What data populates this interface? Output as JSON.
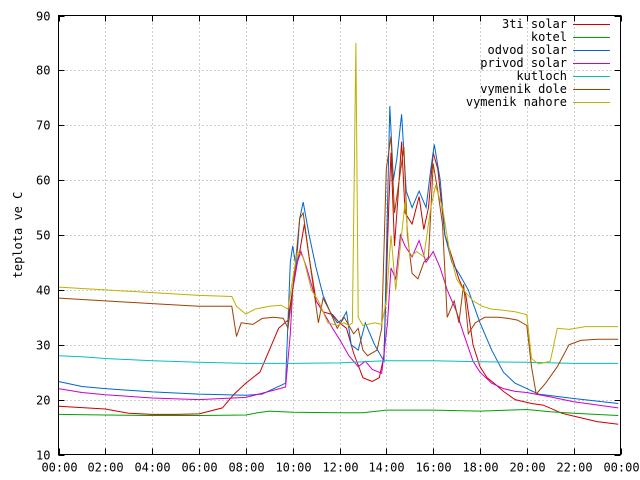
{
  "chart_data": {
    "type": "line",
    "title": "",
    "xlabel": "",
    "ylabel": "teplota ve C",
    "grid": true,
    "legend_position": "top-right",
    "xlim": [
      0,
      24
    ],
    "ylim": [
      10,
      90
    ],
    "x_ticks": [
      {
        "value": 0,
        "label": "00:00"
      },
      {
        "value": 2,
        "label": "02:00"
      },
      {
        "value": 4,
        "label": "04:00"
      },
      {
        "value": 6,
        "label": "06:00"
      },
      {
        "value": 8,
        "label": "08:00"
      },
      {
        "value": 10,
        "label": "10:00"
      },
      {
        "value": 12,
        "label": "12:00"
      },
      {
        "value": 14,
        "label": "14:00"
      },
      {
        "value": 16,
        "label": "16:00"
      },
      {
        "value": 18,
        "label": "18:00"
      },
      {
        "value": 20,
        "label": "20:00"
      },
      {
        "value": 22,
        "label": "22:00"
      },
      {
        "value": 24,
        "label": "00:00"
      }
    ],
    "y_ticks": [
      10,
      20,
      30,
      40,
      50,
      60,
      70,
      80,
      90
    ],
    "series": [
      {
        "name": "3ti solar",
        "color": "#cc0000",
        "points": [
          [
            0,
            18.8
          ],
          [
            2,
            18.3
          ],
          [
            3,
            17.5
          ],
          [
            4,
            17.3
          ],
          [
            5,
            17.3
          ],
          [
            6,
            17.4
          ],
          [
            7,
            18.5
          ],
          [
            7.5,
            21
          ],
          [
            8,
            23
          ],
          [
            8.6,
            25
          ],
          [
            9,
            29
          ],
          [
            9.4,
            33
          ],
          [
            9.8,
            34.5
          ],
          [
            10.1,
            43
          ],
          [
            10.3,
            47
          ],
          [
            10.5,
            52
          ],
          [
            10.7,
            46
          ],
          [
            11,
            38
          ],
          [
            11.3,
            36
          ],
          [
            11.7,
            35.5
          ],
          [
            12,
            34
          ],
          [
            12.3,
            33
          ],
          [
            12.6,
            28.5
          ],
          [
            13,
            24
          ],
          [
            13.4,
            23.3
          ],
          [
            13.7,
            24
          ],
          [
            13.9,
            28
          ],
          [
            14.1,
            55
          ],
          [
            14.2,
            65
          ],
          [
            14.35,
            48
          ],
          [
            14.5,
            57
          ],
          [
            14.65,
            67
          ],
          [
            14.8,
            54
          ],
          [
            15.1,
            52
          ],
          [
            15.4,
            57
          ],
          [
            15.6,
            51
          ],
          [
            15.8,
            55
          ],
          [
            16,
            65
          ],
          [
            16.2,
            62
          ],
          [
            16.5,
            50
          ],
          [
            16.8,
            46
          ],
          [
            17.1,
            42
          ],
          [
            17.4,
            39
          ],
          [
            17.7,
            30
          ],
          [
            18,
            26
          ],
          [
            18.3,
            24
          ],
          [
            18.6,
            23
          ],
          [
            19,
            21.5
          ],
          [
            19.5,
            20
          ],
          [
            20,
            19.5
          ],
          [
            20.2,
            19.3
          ],
          [
            20.7,
            19
          ],
          [
            21.5,
            17.5
          ],
          [
            22,
            17
          ],
          [
            23,
            16
          ],
          [
            23.9,
            15.5
          ]
        ]
      },
      {
        "name": "kotel",
        "color": "#00a000",
        "points": [
          [
            0,
            17.3
          ],
          [
            2,
            17.2
          ],
          [
            4,
            17.1
          ],
          [
            6,
            17.1
          ],
          [
            8,
            17.2
          ],
          [
            8.5,
            17.6
          ],
          [
            9,
            17.9
          ],
          [
            10,
            17.7
          ],
          [
            12,
            17.6
          ],
          [
            13,
            17.6
          ],
          [
            14,
            18.1
          ],
          [
            16,
            18.1
          ],
          [
            18,
            17.9
          ],
          [
            20,
            18.2
          ],
          [
            21,
            17.8
          ],
          [
            22,
            17.5
          ],
          [
            23.9,
            17.1
          ]
        ]
      },
      {
        "name": "odvod solar",
        "color": "#0066cc",
        "points": [
          [
            0,
            23.3
          ],
          [
            1,
            22.4
          ],
          [
            2,
            22
          ],
          [
            4,
            21.4
          ],
          [
            6,
            21
          ],
          [
            8,
            20.8
          ],
          [
            8.7,
            21
          ],
          [
            9.2,
            22
          ],
          [
            9.7,
            23
          ],
          [
            9.9,
            45
          ],
          [
            10,
            48
          ],
          [
            10.15,
            44
          ],
          [
            10.3,
            53
          ],
          [
            10.45,
            56
          ],
          [
            10.7,
            50
          ],
          [
            11,
            44
          ],
          [
            11.3,
            39
          ],
          [
            11.6,
            36
          ],
          [
            11.9,
            34
          ],
          [
            12.1,
            34.5
          ],
          [
            12.3,
            36
          ],
          [
            12.5,
            30
          ],
          [
            12.8,
            29
          ],
          [
            13.1,
            34
          ],
          [
            13.5,
            30
          ],
          [
            13.9,
            27
          ],
          [
            14.05,
            55
          ],
          [
            14.15,
            73.5
          ],
          [
            14.3,
            60
          ],
          [
            14.45,
            64
          ],
          [
            14.65,
            72
          ],
          [
            14.85,
            58
          ],
          [
            15.1,
            55
          ],
          [
            15.4,
            58
          ],
          [
            15.7,
            55
          ],
          [
            15.9,
            62
          ],
          [
            16.05,
            66.5
          ],
          [
            16.3,
            60
          ],
          [
            16.5,
            50
          ],
          [
            16.8,
            45
          ],
          [
            17.1,
            43
          ],
          [
            17.5,
            40
          ],
          [
            18,
            34
          ],
          [
            18.5,
            29
          ],
          [
            19,
            25
          ],
          [
            19.5,
            23
          ],
          [
            20,
            22
          ],
          [
            20.5,
            21
          ],
          [
            22,
            20.2
          ],
          [
            23.9,
            19.3
          ]
        ]
      },
      {
        "name": "privod solar",
        "color": "#cc00cc",
        "points": [
          [
            0,
            22
          ],
          [
            1,
            21.3
          ],
          [
            2,
            20.9
          ],
          [
            4,
            20.3
          ],
          [
            6,
            20
          ],
          [
            8,
            20.4
          ],
          [
            9,
            21.5
          ],
          [
            9.7,
            22.3
          ],
          [
            9.9,
            32
          ],
          [
            10,
            40
          ],
          [
            10.2,
            45
          ],
          [
            10.35,
            47
          ],
          [
            10.6,
            44
          ],
          [
            11,
            38
          ],
          [
            11.3,
            36
          ],
          [
            11.7,
            33
          ],
          [
            12,
            31
          ],
          [
            12.4,
            28
          ],
          [
            12.8,
            26
          ],
          [
            13.1,
            27
          ],
          [
            13.4,
            25.5
          ],
          [
            13.8,
            24.8
          ],
          [
            14.05,
            34
          ],
          [
            14.2,
            44
          ],
          [
            14.4,
            42
          ],
          [
            14.6,
            50
          ],
          [
            14.8,
            48
          ],
          [
            15.1,
            46
          ],
          [
            15.4,
            49
          ],
          [
            15.7,
            45
          ],
          [
            16,
            47
          ],
          [
            16.3,
            44
          ],
          [
            16.6,
            40
          ],
          [
            17,
            36
          ],
          [
            17.3,
            32
          ],
          [
            17.7,
            27
          ],
          [
            18,
            25
          ],
          [
            18.5,
            23
          ],
          [
            19,
            22
          ],
          [
            19.5,
            21.5
          ],
          [
            20,
            21.3
          ],
          [
            21,
            20.5
          ],
          [
            22,
            19.6
          ],
          [
            23.9,
            18.5
          ]
        ]
      },
      {
        "name": "kutloch",
        "color": "#00c0c0",
        "points": [
          [
            0,
            28
          ],
          [
            1,
            27.8
          ],
          [
            2,
            27.5
          ],
          [
            4,
            27.1
          ],
          [
            6,
            26.8
          ],
          [
            8,
            26.6
          ],
          [
            10,
            26.6
          ],
          [
            12,
            26.7
          ],
          [
            14,
            27.1
          ],
          [
            16,
            27.1
          ],
          [
            18,
            26.9
          ],
          [
            20,
            26.8
          ],
          [
            22,
            26.6
          ],
          [
            23.9,
            26.6
          ]
        ]
      },
      {
        "name": "vymenik dole",
        "color": "#a04000",
        "points": [
          [
            0,
            38.5
          ],
          [
            2,
            38
          ],
          [
            4,
            37.5
          ],
          [
            6,
            37
          ],
          [
            7.4,
            37
          ],
          [
            7.6,
            31.5
          ],
          [
            7.8,
            34
          ],
          [
            8.3,
            33.7
          ],
          [
            8.7,
            34.8
          ],
          [
            9.2,
            35
          ],
          [
            9.6,
            34.8
          ],
          [
            9.8,
            33
          ],
          [
            9.95,
            38
          ],
          [
            10.1,
            44
          ],
          [
            10.3,
            53
          ],
          [
            10.45,
            54
          ],
          [
            10.7,
            46
          ],
          [
            11.1,
            34
          ],
          [
            11.3,
            38.5
          ],
          [
            11.6,
            36
          ],
          [
            11.9,
            33
          ],
          [
            12.2,
            35
          ],
          [
            12.6,
            32
          ],
          [
            12.8,
            33
          ],
          [
            13,
            29
          ],
          [
            13.2,
            28
          ],
          [
            13.6,
            29
          ],
          [
            13.8,
            33
          ],
          [
            14,
            62
          ],
          [
            14.2,
            68
          ],
          [
            14.35,
            54
          ],
          [
            14.55,
            60
          ],
          [
            14.75,
            66
          ],
          [
            14.9,
            50
          ],
          [
            15.1,
            43
          ],
          [
            15.35,
            42
          ],
          [
            15.6,
            45
          ],
          [
            15.8,
            46
          ],
          [
            16,
            63
          ],
          [
            16.2,
            58
          ],
          [
            16.4,
            52
          ],
          [
            16.6,
            35
          ],
          [
            16.9,
            38
          ],
          [
            17.1,
            34
          ],
          [
            17.3,
            41
          ],
          [
            17.5,
            32
          ],
          [
            17.8,
            34
          ],
          [
            18.2,
            35
          ],
          [
            18.8,
            35
          ],
          [
            19.2,
            34.8
          ],
          [
            19.6,
            34.5
          ],
          [
            20,
            33.5
          ],
          [
            20.2,
            26
          ],
          [
            20.4,
            21
          ],
          [
            20.8,
            23
          ],
          [
            21.3,
            26
          ],
          [
            21.8,
            30
          ],
          [
            22.3,
            30.8
          ],
          [
            23,
            31
          ],
          [
            23.9,
            31
          ]
        ]
      },
      {
        "name": "vymenik nahore",
        "color": "#c0b000",
        "points": [
          [
            0,
            40.5
          ],
          [
            2,
            40
          ],
          [
            4,
            39.5
          ],
          [
            6,
            39
          ],
          [
            7.4,
            38.8
          ],
          [
            7.6,
            37
          ],
          [
            8,
            35.6
          ],
          [
            8.4,
            36.5
          ],
          [
            9,
            37
          ],
          [
            9.5,
            37.2
          ],
          [
            9.8,
            36.5
          ],
          [
            10,
            42
          ],
          [
            10.2,
            47
          ],
          [
            10.45,
            46
          ],
          [
            10.8,
            40
          ],
          [
            11.1,
            38
          ],
          [
            11.5,
            34
          ],
          [
            11.9,
            33.5
          ],
          [
            12.2,
            34
          ],
          [
            12.4,
            33.5
          ],
          [
            12.55,
            34
          ],
          [
            12.7,
            85
          ],
          [
            12.8,
            35
          ],
          [
            13,
            33.5
          ],
          [
            13.5,
            34
          ],
          [
            13.8,
            33.7
          ],
          [
            14,
            38
          ],
          [
            14.2,
            50
          ],
          [
            14.4,
            40
          ],
          [
            14.6,
            48
          ],
          [
            14.8,
            56
          ],
          [
            15,
            46
          ],
          [
            15.3,
            47
          ],
          [
            15.6,
            46
          ],
          [
            15.9,
            55
          ],
          [
            16.1,
            59
          ],
          [
            16.4,
            55
          ],
          [
            16.7,
            47
          ],
          [
            17,
            42
          ],
          [
            17.3,
            40
          ],
          [
            17.7,
            38
          ],
          [
            18.1,
            37
          ],
          [
            18.5,
            36.5
          ],
          [
            19,
            36.3
          ],
          [
            19.5,
            36
          ],
          [
            20,
            35.5
          ],
          [
            20.2,
            27.5
          ],
          [
            20.5,
            26.5
          ],
          [
            21,
            27
          ],
          [
            21.3,
            33
          ],
          [
            21.8,
            32.8
          ],
          [
            22.5,
            33.3
          ],
          [
            23.9,
            33.3
          ]
        ]
      }
    ]
  }
}
